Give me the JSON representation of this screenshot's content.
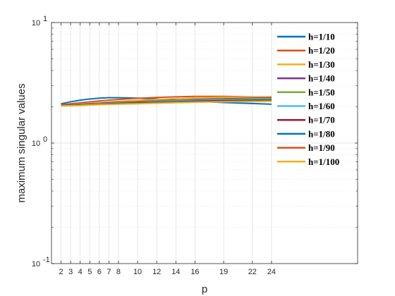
{
  "chart_data": {
    "type": "line",
    "title": "",
    "xlabel": "p",
    "ylabel": "maximum singular values",
    "xlim": [
      1,
      33
    ],
    "ylim": [
      0.1,
      10
    ],
    "yscale": "log",
    "grid": true,
    "minor_grid": true,
    "legend_position": "top-right",
    "xticks": [
      2,
      3,
      4,
      5,
      6,
      7,
      8,
      10,
      12,
      14,
      16,
      19,
      22,
      24
    ],
    "yticks": [
      {
        "value": 0.1,
        "base": "10",
        "exp": "-1"
      },
      {
        "value": 1,
        "base": "10",
        "exp": "0"
      },
      {
        "value": 10,
        "base": "10",
        "exp": "1"
      }
    ],
    "x": [
      2,
      3,
      4,
      5,
      6,
      7,
      8,
      10,
      12,
      14,
      16,
      19,
      22,
      24
    ],
    "series": [
      {
        "name": "h=1/10",
        "color": "#0072BD",
        "values": [
          2.12,
          2.2,
          2.27,
          2.32,
          2.36,
          2.38,
          2.38,
          2.36,
          2.32,
          2.27,
          2.22,
          2.17,
          2.13,
          2.1
        ]
      },
      {
        "name": "h=1/20",
        "color": "#D95319",
        "values": [
          2.08,
          2.12,
          2.16,
          2.2,
          2.24,
          2.27,
          2.3,
          2.35,
          2.39,
          2.42,
          2.44,
          2.44,
          2.42,
          2.4
        ]
      },
      {
        "name": "h=1/30",
        "color": "#EDB120",
        "values": [
          2.05,
          2.08,
          2.11,
          2.14,
          2.17,
          2.19,
          2.22,
          2.26,
          2.3,
          2.34,
          2.37,
          2.4,
          2.42,
          2.43
        ]
      },
      {
        "name": "h=1/40",
        "color": "#7E2F8E",
        "values": [
          2.06,
          2.08,
          2.1,
          2.12,
          2.14,
          2.16,
          2.18,
          2.21,
          2.24,
          2.27,
          2.3,
          2.33,
          2.36,
          2.37
        ]
      },
      {
        "name": "h=1/50",
        "color": "#77AC30",
        "values": [
          2.05,
          2.07,
          2.09,
          2.11,
          2.13,
          2.14,
          2.16,
          2.19,
          2.22,
          2.25,
          2.27,
          2.3,
          2.33,
          2.34
        ]
      },
      {
        "name": "h=1/60",
        "color": "#4DBEEE",
        "values": [
          2.05,
          2.06,
          2.08,
          2.1,
          2.11,
          2.13,
          2.14,
          2.17,
          2.2,
          2.22,
          2.25,
          2.27,
          2.3,
          2.31
        ]
      },
      {
        "name": "h=1/70",
        "color": "#A2142F",
        "values": [
          2.04,
          2.06,
          2.07,
          2.09,
          2.1,
          2.12,
          2.13,
          2.16,
          2.18,
          2.2,
          2.23,
          2.25,
          2.27,
          2.28
        ]
      },
      {
        "name": "h=1/80",
        "color": "#0072BD",
        "values": [
          2.04,
          2.05,
          2.07,
          2.08,
          2.09,
          2.11,
          2.12,
          2.14,
          2.16,
          2.19,
          2.21,
          2.23,
          2.25,
          2.26
        ]
      },
      {
        "name": "h=1/90",
        "color": "#D95319",
        "values": [
          2.04,
          2.05,
          2.06,
          2.07,
          2.09,
          2.1,
          2.11,
          2.13,
          2.15,
          2.17,
          2.19,
          2.21,
          2.23,
          2.24
        ]
      },
      {
        "name": "h=1/100",
        "color": "#EDB120",
        "values": [
          2.03,
          2.04,
          2.05,
          2.07,
          2.08,
          2.09,
          2.1,
          2.12,
          2.14,
          2.16,
          2.18,
          2.2,
          2.21,
          2.22
        ]
      }
    ]
  }
}
